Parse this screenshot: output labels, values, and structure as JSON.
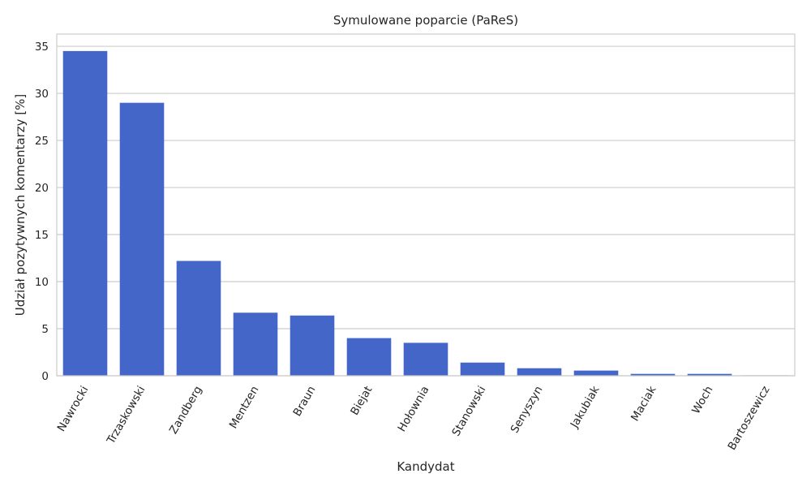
{
  "chart_data": {
    "type": "bar",
    "title": "Symulowane poparcie (PaReS)",
    "xlabel": "Kandydat",
    "ylabel": "Udział pozytywnych komentarzy [%]",
    "categories": [
      "Nawrocki",
      "Trzaskowski",
      "Zandberg",
      "Mentzen",
      "Braun",
      "Biejat",
      "Hołownia",
      "Stanowski",
      "Senyszyn",
      "Jakubiak",
      "Maciak",
      "Woch",
      "Bartoszewicz"
    ],
    "values": [
      34.5,
      29.0,
      12.2,
      6.7,
      6.4,
      4.0,
      3.5,
      1.4,
      0.8,
      0.55,
      0.2,
      0.2,
      0.05
    ],
    "ylim": [
      0,
      36.3
    ],
    "yticks": [
      "0",
      "5",
      "10",
      "15",
      "20",
      "25",
      "30",
      "35"
    ],
    "grid": true,
    "bar_color": "#4466c8",
    "grid_color": "#cccccc",
    "spine_color": "#cccccc"
  }
}
